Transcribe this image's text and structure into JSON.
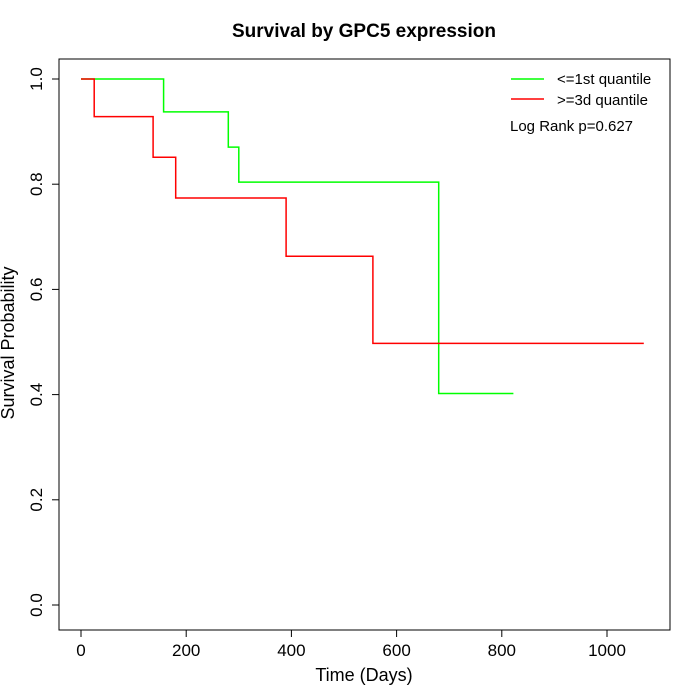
{
  "chart_data": {
    "type": "line",
    "subtype": "kaplan-meier step",
    "title": "Survival by GPC5 expression",
    "xlabel": "Time (Days)",
    "ylabel": "Survival Probability",
    "xlim": [
      0,
      1100
    ],
    "ylim": [
      0,
      1.0
    ],
    "x_ticks": [
      0,
      200,
      400,
      600,
      800,
      1000
    ],
    "y_ticks": [
      "0.0",
      "0.2",
      "0.4",
      "0.6",
      "0.8",
      "1.0"
    ],
    "grid": false,
    "legend_position": "top-right",
    "annotation": "Log Rank p=0.627",
    "series": [
      {
        "name": "<=1st quantile",
        "color": "#00ff00",
        "points": [
          [
            0,
            1.0
          ],
          [
            157,
            1.0
          ],
          [
            157,
            0.9375
          ],
          [
            280,
            0.9375
          ],
          [
            280,
            0.8705
          ],
          [
            300,
            0.8705
          ],
          [
            300,
            0.804
          ],
          [
            680,
            0.804
          ],
          [
            680,
            0.402
          ],
          [
            822,
            0.402
          ]
        ]
      },
      {
        "name": ">=3d quantile",
        "color": "#ff0000",
        "points": [
          [
            0,
            1.0
          ],
          [
            25,
            1.0
          ],
          [
            25,
            0.9286
          ],
          [
            137,
            0.9286
          ],
          [
            137,
            0.8512
          ],
          [
            180,
            0.8512
          ],
          [
            180,
            0.7738
          ],
          [
            390,
            0.7738
          ],
          [
            390,
            0.6632
          ],
          [
            555,
            0.6632
          ],
          [
            555,
            0.4974
          ],
          [
            1070,
            0.4974
          ]
        ]
      }
    ]
  }
}
